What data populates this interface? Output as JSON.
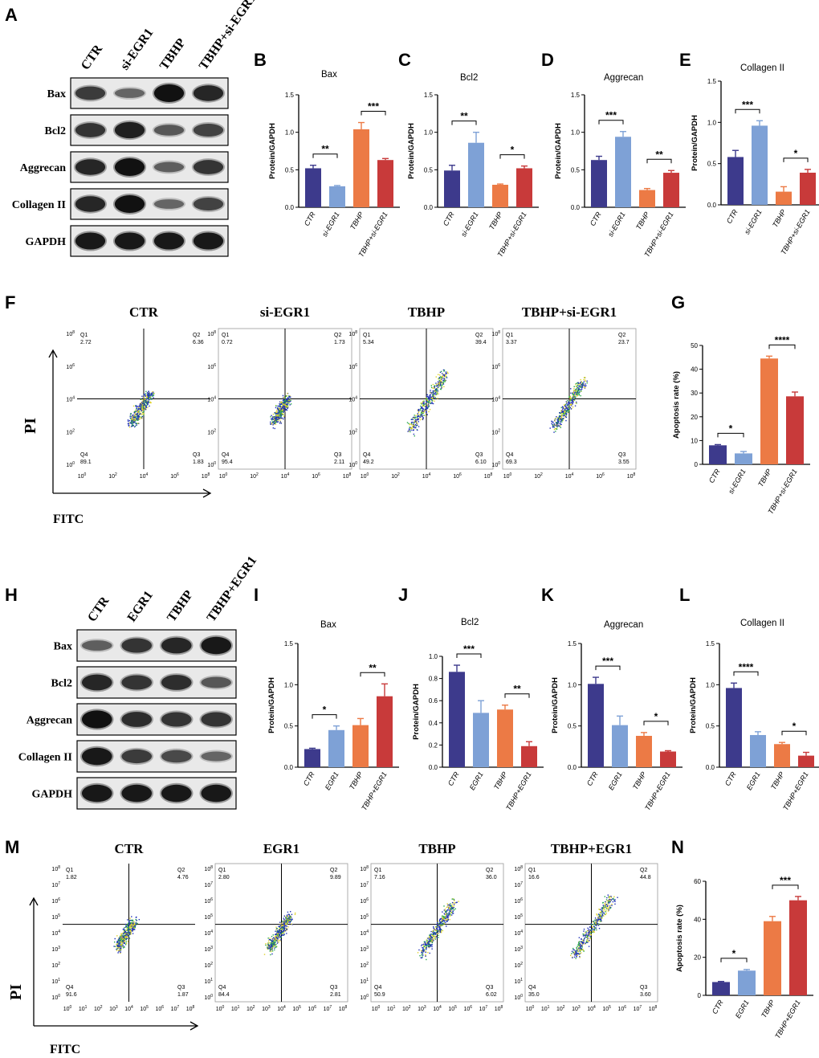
{
  "colors": {
    "c1": "#3d3a8c",
    "c2": "#7ea1d6",
    "c3": "#ec7a45",
    "c4": "#c83a3a"
  },
  "panel_labels": {
    "A": "A",
    "B": "B",
    "C": "C",
    "D": "D",
    "E": "E",
    "F": "F",
    "G": "G",
    "H": "H",
    "I": "I",
    "J": "J",
    "K": "K",
    "L": "L",
    "M": "M",
    "N": "N"
  },
  "blot_top": {
    "columns": [
      "CTR",
      "si-EGR1",
      "TBHP",
      "TBHP+si-EGR1"
    ],
    "rows": [
      {
        "label": "Bax",
        "intensity": [
          0.65,
          0.35,
          0.95,
          0.8
        ]
      },
      {
        "label": "Bcl2",
        "intensity": [
          0.7,
          0.85,
          0.45,
          0.6
        ]
      },
      {
        "label": "Aggrecan",
        "intensity": [
          0.8,
          0.95,
          0.4,
          0.7
        ]
      },
      {
        "label": "Collagen II",
        "intensity": [
          0.8,
          0.95,
          0.35,
          0.6
        ]
      },
      {
        "label": "GAPDH",
        "intensity": [
          0.9,
          0.9,
          0.9,
          0.9
        ]
      }
    ]
  },
  "blot_bottom": {
    "columns": [
      "CTR",
      "EGR1",
      "TBHP",
      "TBHP+EGR1"
    ],
    "rows": [
      {
        "label": "Bax",
        "intensity": [
          0.4,
          0.7,
          0.8,
          0.9
        ]
      },
      {
        "label": "Bcl2",
        "intensity": [
          0.8,
          0.7,
          0.75,
          0.45
        ]
      },
      {
        "label": "Aggrecan",
        "intensity": [
          0.95,
          0.75,
          0.7,
          0.7
        ]
      },
      {
        "label": "Collagen II",
        "intensity": [
          0.9,
          0.65,
          0.55,
          0.35
        ]
      },
      {
        "label": "GAPDH",
        "intensity": [
          0.9,
          0.9,
          0.9,
          0.9
        ]
      }
    ]
  },
  "chart_data": [
    {
      "id": "B",
      "type": "bar",
      "title": "Bax",
      "ylabel": "Protein/GAPDH",
      "ylim": [
        0,
        1.5
      ],
      "yticks": [
        "0.0",
        "0.5",
        "1.0",
        "1.5"
      ],
      "categories": [
        "CTR",
        "si-EGR1",
        "TBHP",
        "TBHP+si-EGR1"
      ],
      "values": [
        0.52,
        0.28,
        1.04,
        0.63
      ],
      "errors": [
        0.04,
        0.01,
        0.09,
        0.02
      ],
      "sig": [
        {
          "from": 0,
          "to": 1,
          "label": "**"
        },
        {
          "from": 2,
          "to": 3,
          "label": "***"
        }
      ]
    },
    {
      "id": "C",
      "type": "bar",
      "title": "Bcl2",
      "ylabel": "Protein/GAPDH",
      "ylim": [
        0,
        1.5
      ],
      "yticks": [
        "0.0",
        "0.5",
        "1.0",
        "1.5"
      ],
      "categories": [
        "CTR",
        "si-EGR1",
        "TBHP",
        "TBHP+si-EGR1"
      ],
      "values": [
        0.49,
        0.86,
        0.3,
        0.52
      ],
      "errors": [
        0.07,
        0.14,
        0.01,
        0.03
      ],
      "sig": [
        {
          "from": 0,
          "to": 1,
          "label": "**"
        },
        {
          "from": 2,
          "to": 3,
          "label": "*"
        }
      ]
    },
    {
      "id": "D",
      "type": "bar",
      "title": "Aggrecan",
      "ylabel": "Protein/GAPDH",
      "ylim": [
        0,
        1.5
      ],
      "yticks": [
        "0.0",
        "0.5",
        "1.0",
        "1.5"
      ],
      "categories": [
        "CTR",
        "si-EGR1",
        "TBHP",
        "TBHP+si-EGR1"
      ],
      "values": [
        0.63,
        0.94,
        0.23,
        0.46
      ],
      "errors": [
        0.05,
        0.07,
        0.02,
        0.03
      ],
      "sig": [
        {
          "from": 0,
          "to": 1,
          "label": "***"
        },
        {
          "from": 2,
          "to": 3,
          "label": "**"
        }
      ]
    },
    {
      "id": "E",
      "type": "bar",
      "title": "Collagen II",
      "ylabel": "Protein/GAPDH",
      "ylim": [
        0,
        1.5
      ],
      "yticks": [
        "0.0",
        "0.5",
        "1.0",
        "1.5"
      ],
      "categories": [
        "CTR",
        "si-EGR1",
        "TBHP",
        "TBHP+si-EGR1"
      ],
      "values": [
        0.58,
        0.96,
        0.16,
        0.39
      ],
      "errors": [
        0.08,
        0.06,
        0.06,
        0.04
      ],
      "sig": [
        {
          "from": 0,
          "to": 1,
          "label": "***"
        },
        {
          "from": 2,
          "to": 3,
          "label": "*"
        }
      ]
    },
    {
      "id": "G",
      "type": "bar",
      "title": "",
      "ylabel": "Apoptosis rate (%)",
      "ylim": [
        0,
        50
      ],
      "yticks": [
        "0",
        "10",
        "20",
        "30",
        "40",
        "50"
      ],
      "categories": [
        "CTR",
        "si-EGR1",
        "TBHP",
        "TBHP+si-EGR1"
      ],
      "values": [
        8.0,
        4.6,
        44.5,
        28.6
      ],
      "errors": [
        0.3,
        0.8,
        1.0,
        1.8
      ],
      "sig": [
        {
          "from": 0,
          "to": 1,
          "label": "*"
        },
        {
          "from": 2,
          "to": 3,
          "label": "****"
        }
      ]
    },
    {
      "id": "I",
      "type": "bar",
      "title": "Bax",
      "ylabel": "Protein/GAPDH",
      "ylim": [
        0,
        1.5
      ],
      "yticks": [
        "0.0",
        "0.5",
        "1.0",
        "1.5"
      ],
      "categories": [
        "CTR",
        "EGR1",
        "TBHP",
        "TBHP+EGR1"
      ],
      "values": [
        0.22,
        0.45,
        0.51,
        0.86
      ],
      "errors": [
        0.01,
        0.05,
        0.08,
        0.15
      ],
      "sig": [
        {
          "from": 0,
          "to": 1,
          "label": "*"
        },
        {
          "from": 2,
          "to": 3,
          "label": "**"
        }
      ]
    },
    {
      "id": "J",
      "type": "bar",
      "title": "Bcl2",
      "ylabel": "Protein/GAPDH",
      "ylim": [
        0,
        1.0
      ],
      "yticks": [
        "0.0",
        "0.2",
        "0.4",
        "0.6",
        "0.8",
        "1.0"
      ],
      "categories": [
        "CTR",
        "EGR1",
        "TBHP",
        "TBHP+EGR1"
      ],
      "values": [
        0.86,
        0.49,
        0.52,
        0.19
      ],
      "errors": [
        0.06,
        0.11,
        0.04,
        0.04
      ],
      "sig": [
        {
          "from": 0,
          "to": 1,
          "label": "***"
        },
        {
          "from": 2,
          "to": 3,
          "label": "**"
        }
      ]
    },
    {
      "id": "K",
      "type": "bar",
      "title": "Aggrecan",
      "ylabel": "Protein/GAPDH",
      "ylim": [
        0,
        1.5
      ],
      "yticks": [
        "0.0",
        "0.5",
        "1.0",
        "1.5"
      ],
      "categories": [
        "CTR",
        "EGR1",
        "TBHP",
        "TBHP+EGR1"
      ],
      "values": [
        1.01,
        0.51,
        0.38,
        0.19
      ],
      "errors": [
        0.08,
        0.11,
        0.04,
        0.01
      ],
      "sig": [
        {
          "from": 0,
          "to": 1,
          "label": "***"
        },
        {
          "from": 2,
          "to": 3,
          "label": "*"
        }
      ]
    },
    {
      "id": "L",
      "type": "bar",
      "title": "Collagen II",
      "ylabel": "Protein/GAPDH",
      "ylim": [
        0,
        1.5
      ],
      "yticks": [
        "0.0",
        "0.5",
        "1.0",
        "1.5"
      ],
      "categories": [
        "CTR",
        "EGR1",
        "TBHP",
        "TBHP+EGR1"
      ],
      "values": [
        0.96,
        0.39,
        0.28,
        0.14
      ],
      "errors": [
        0.06,
        0.04,
        0.02,
        0.04
      ],
      "sig": [
        {
          "from": 0,
          "to": 1,
          "label": "****"
        },
        {
          "from": 2,
          "to": 3,
          "label": "*"
        }
      ]
    },
    {
      "id": "N",
      "type": "bar",
      "title": "",
      "ylabel": "Apoptosis rate (%)",
      "ylim": [
        0,
        60
      ],
      "yticks": [
        "0",
        "20",
        "40",
        "60"
      ],
      "categories": [
        "CTR",
        "EGR1",
        "TBHP",
        "TBHP+EGR1"
      ],
      "values": [
        7.0,
        13.0,
        39.0,
        50.0
      ],
      "errors": [
        0.3,
        0.6,
        2.5,
        2.0
      ],
      "sig": [
        {
          "from": 0,
          "to": 1,
          "label": "*"
        },
        {
          "from": 2,
          "to": 3,
          "label": "***"
        }
      ]
    }
  ],
  "flow_top": {
    "xaxis_label": "FITC",
    "yaxis_label": "PI",
    "ticks": [
      "10",
      "10",
      "10",
      "10",
      "10"
    ],
    "exps": [
      "0",
      "2",
      "4",
      "6",
      "8"
    ],
    "plots": [
      {
        "title": "CTR",
        "q1": "Q1",
        "q2": "Q2",
        "q3": "Q3",
        "q4": "Q4",
        "v1": "2.72",
        "v2": "6.36",
        "v3": "1.83",
        "v4": "89.1",
        "spread": 0.15
      },
      {
        "title": "si-EGR1",
        "q1": "Q1",
        "q2": "Q2",
        "q3": "Q3",
        "q4": "Q4",
        "v1": "0.72",
        "v2": "1.73",
        "v3": "2.11",
        "v4": "95.4",
        "spread": 0.05
      },
      {
        "title": "TBHP",
        "q1": "Q1",
        "q2": "Q2",
        "q3": "Q3",
        "q4": "Q4",
        "v1": "5.34",
        "v2": "39.4",
        "v3": "6.10",
        "v4": "49.2",
        "spread": 0.55
      },
      {
        "title": "TBHP+si-EGR1",
        "q1": "Q1",
        "q2": "Q2",
        "q3": "Q3",
        "q4": "Q4",
        "v1": "3.37",
        "v2": "23.7",
        "v3": "3.55",
        "v4": "69.3",
        "spread": 0.4
      }
    ]
  },
  "flow_bottom": {
    "xaxis_label": "FITC",
    "yaxis_label": "PI",
    "ticks": [
      "10",
      "10",
      "10",
      "10",
      "10",
      "10",
      "10",
      "10",
      "10"
    ],
    "exps": [
      "0",
      "1",
      "2",
      "3",
      "4",
      "5",
      "6",
      "7",
      "8"
    ],
    "plots": [
      {
        "title": "CTR",
        "q1": "Q1",
        "q2": "Q2",
        "q3": "Q3",
        "q4": "Q4",
        "v1": "1.82",
        "v2": "4.76",
        "v3": "1.87",
        "v4": "91.6",
        "spread": 0.1
      },
      {
        "title": "EGR1",
        "q1": "Q1",
        "q2": "Q2",
        "q3": "Q3",
        "q4": "Q4",
        "v1": "2.80",
        "v2": "9.89",
        "v3": "2.81",
        "v4": "84.4",
        "spread": 0.2
      },
      {
        "title": "TBHP",
        "q1": "Q1",
        "q2": "Q2",
        "q3": "Q3",
        "q4": "Q4",
        "v1": "7.16",
        "v2": "36.0",
        "v3": "6.02",
        "v4": "50.9",
        "spread": 0.5
      },
      {
        "title": "TBHP+EGR1",
        "q1": "Q1",
        "q2": "Q2",
        "q3": "Q3",
        "q4": "Q4",
        "v1": "16.6",
        "v2": "44.8",
        "v3": "3.60",
        "v4": "35.0",
        "spread": 0.6
      }
    ]
  }
}
